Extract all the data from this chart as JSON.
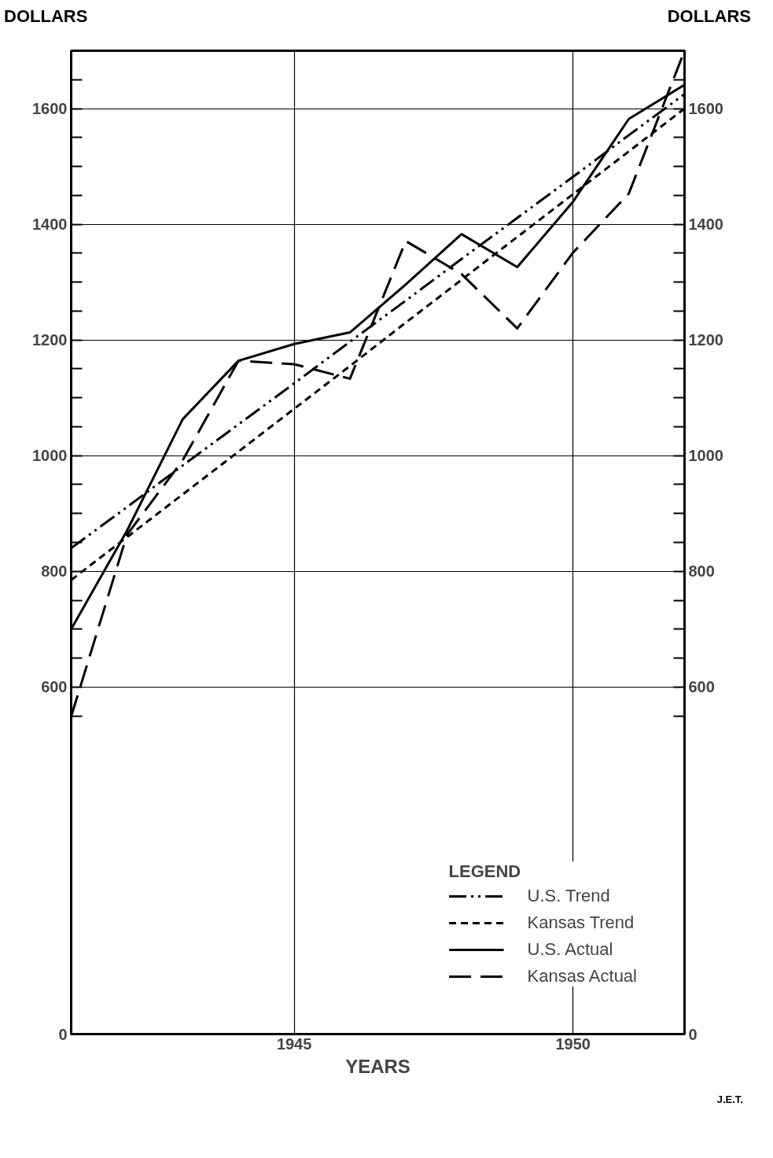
{
  "chart_data": {
    "type": "line",
    "ylabel": "DOLLARS",
    "y2label": "DOLLARS",
    "xlabel": "YEARS",
    "legend_title": "LEGEND",
    "x": [
      1941,
      1942,
      1943,
      1944,
      1945,
      1946,
      1947,
      1948,
      1949,
      1950,
      1951,
      1952
    ],
    "series": [
      {
        "name": "U.S. Trend",
        "color": "#000000",
        "line_style": "dashdot",
        "values": [
          840,
          911,
          983,
          1054,
          1125,
          1197,
          1268,
          1340,
          1411,
          1482,
          1554,
          1625
        ]
      },
      {
        "name": "Kansas Trend",
        "color": "#000000",
        "line_style": "dotted",
        "values": [
          785,
          859,
          933,
          1007,
          1081,
          1155,
          1230,
          1304,
          1378,
          1452,
          1526,
          1600
        ]
      },
      {
        "name": "U.S. Actual",
        "color": "#000000",
        "line_style": "solid",
        "values": [
          700,
          870,
          1063,
          1164,
          1193,
          1213,
          1296,
          1383,
          1326,
          1439,
          1582,
          1641
        ]
      },
      {
        "name": "Kansas Actual",
        "color": "#000000",
        "line_style": "dashed",
        "values": [
          549,
          863,
          992,
          1164,
          1158,
          1133,
          1371,
          1314,
          1220,
          1351,
          1453,
          1700
        ]
      }
    ],
    "xlim": [
      1941,
      1952
    ],
    "xticks": [
      1945,
      1950
    ],
    "ylim": [
      0,
      1700
    ],
    "yticks": [
      0,
      {
        "value": 550,
        "label": null
      },
      600,
      {
        "value": 650,
        "label": null
      },
      {
        "value": 700,
        "label": null
      },
      {
        "value": 750,
        "label": null
      },
      800,
      {
        "value": 850,
        "label": null
      },
      {
        "value": 900,
        "label": null
      },
      {
        "value": 950,
        "label": null
      },
      1000,
      {
        "value": 1050,
        "label": null
      },
      {
        "value": 1100,
        "label": null
      },
      {
        "value": 1150,
        "label": null
      },
      1200,
      {
        "value": 1250,
        "label": null
      },
      {
        "value": 1300,
        "label": null
      },
      {
        "value": 1350,
        "label": null
      },
      1400,
      {
        "value": 1450,
        "label": null
      },
      {
        "value": 1500,
        "label": null
      },
      {
        "value": 1550,
        "label": null
      },
      1600,
      {
        "value": 1650,
        "label": null
      }
    ],
    "y2lim": [
      0,
      1700
    ],
    "y2ticks": [
      0,
      {
        "value": 550,
        "label": null
      },
      600,
      {
        "value": 650,
        "label": null
      },
      {
        "value": 700,
        "label": null
      },
      {
        "value": 750,
        "label": null
      },
      800,
      {
        "value": 850,
        "label": null
      },
      {
        "value": 900,
        "label": null
      },
      {
        "value": 950,
        "label": null
      },
      1000,
      {
        "value": 1050,
        "label": null
      },
      {
        "value": 1100,
        "label": null
      },
      {
        "value": 1150,
        "label": null
      },
      1200,
      {
        "value": 1250,
        "label": null
      },
      {
        "value": 1300,
        "label": null
      },
      {
        "value": 1350,
        "label": null
      },
      1400,
      {
        "value": 1450,
        "label": null
      },
      {
        "value": 1500,
        "label": null
      },
      {
        "value": 1550,
        "label": null
      },
      1600,
      {
        "value": 1650,
        "label": null
      }
    ],
    "grid": true,
    "legend": "bottom right",
    "annotations": [
      "J.E.T."
    ]
  }
}
